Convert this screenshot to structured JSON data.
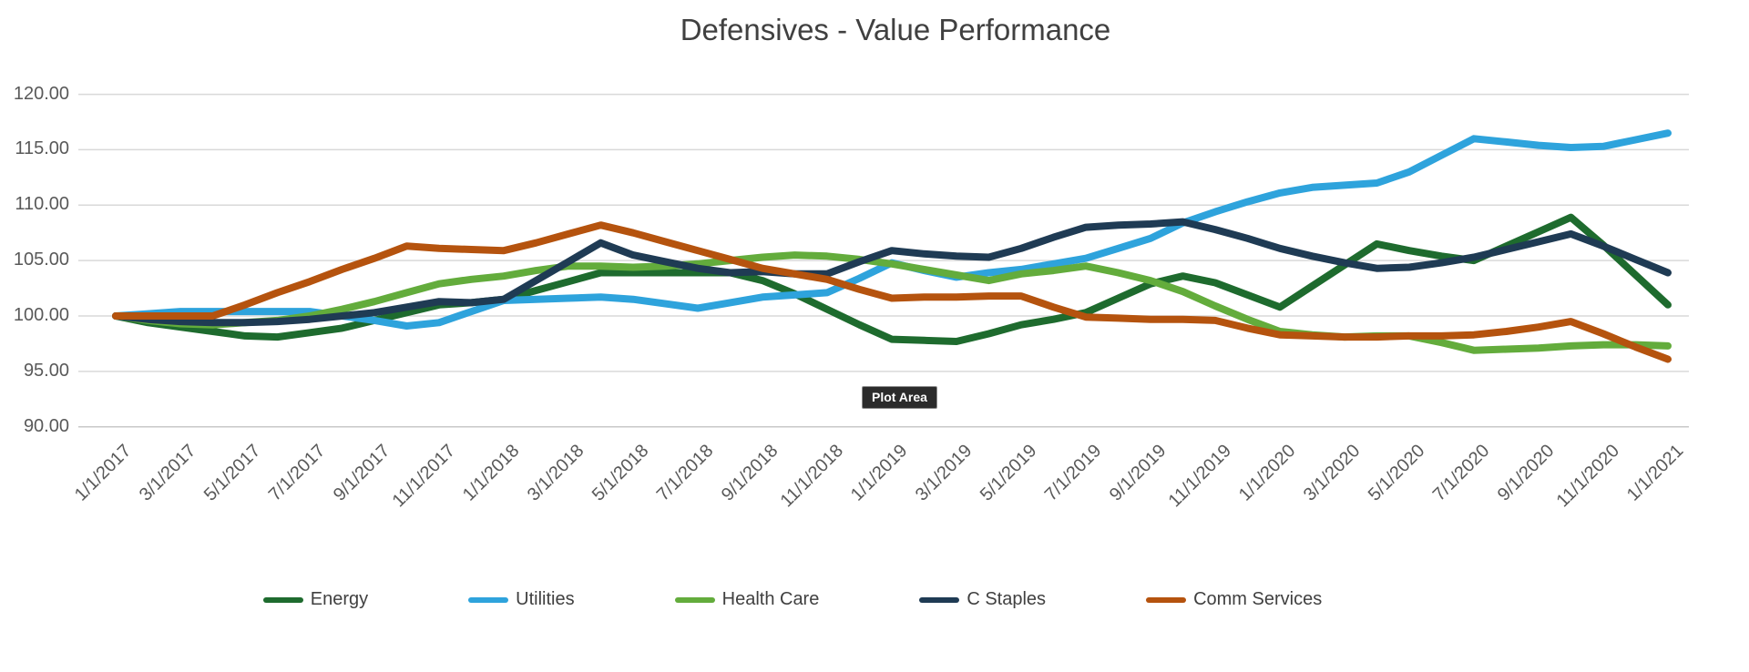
{
  "tooltip": {
    "label": "Plot Area"
  },
  "chart_data": {
    "type": "line",
    "title": "Defensives - Value Performance",
    "xlabel": "",
    "ylabel": "",
    "grid": true,
    "legend_position": "bottom",
    "x_axis": {
      "label_every": 2,
      "label_rotation_deg": -45,
      "categories": [
        "1/1/2017",
        "2/1/2017",
        "3/1/2017",
        "4/1/2017",
        "5/1/2017",
        "6/1/2017",
        "7/1/2017",
        "8/1/2017",
        "9/1/2017",
        "10/1/2017",
        "11/1/2017",
        "12/1/2017",
        "1/1/2018",
        "2/1/2018",
        "3/1/2018",
        "4/1/2018",
        "5/1/2018",
        "6/1/2018",
        "7/1/2018",
        "8/1/2018",
        "9/1/2018",
        "10/1/2018",
        "11/1/2018",
        "12/1/2018",
        "1/1/2019",
        "2/1/2019",
        "3/1/2019",
        "4/1/2019",
        "5/1/2019",
        "6/1/2019",
        "7/1/2019",
        "8/1/2019",
        "9/1/2019",
        "10/1/2019",
        "11/1/2019",
        "12/1/2019",
        "1/1/2020",
        "2/1/2020",
        "3/1/2020",
        "4/1/2020",
        "5/1/2020",
        "6/1/2020",
        "7/1/2020",
        "8/1/2020",
        "9/1/2020",
        "10/1/2020",
        "11/1/2020",
        "12/1/2020",
        "1/1/2021"
      ]
    },
    "y_axis": {
      "min": 90,
      "max": 120,
      "step": 5,
      "tick_labels": [
        "120.00",
        "115.00",
        "110.00",
        "105.00",
        "100.00",
        "95.00",
        "90.00"
      ],
      "tick_values": [
        120,
        115,
        110,
        105,
        100,
        95,
        90
      ]
    },
    "series": [
      {
        "name": "Energy",
        "color": "#1E6B2E",
        "values": [
          100.0,
          99.4,
          99.0,
          98.6,
          98.2,
          98.1,
          98.5,
          98.9,
          99.6,
          100.3,
          101.0,
          101.2,
          101.5,
          102.3,
          103.1,
          103.9,
          103.9,
          103.9,
          103.9,
          103.9,
          103.2,
          102.0,
          100.6,
          99.2,
          97.9,
          97.8,
          97.7,
          98.4,
          99.2,
          99.7,
          100.3,
          101.6,
          102.9,
          103.6,
          103.0,
          101.9,
          100.8,
          102.7,
          104.6,
          106.5,
          105.9,
          105.4,
          105.0,
          106.3,
          107.6,
          108.9,
          106.4,
          103.7,
          101.0
        ]
      },
      {
        "name": "Utilities",
        "color": "#2EA3DC",
        "values": [
          100.0,
          100.2,
          100.4,
          100.4,
          100.4,
          100.4,
          100.4,
          100.0,
          99.6,
          99.1,
          99.4,
          100.4,
          101.4,
          101.5,
          101.6,
          101.7,
          101.5,
          101.1,
          100.7,
          101.2,
          101.7,
          101.9,
          102.1,
          103.4,
          104.8,
          104.1,
          103.5,
          103.9,
          104.2,
          104.7,
          105.2,
          106.1,
          107.0,
          108.4,
          109.4,
          110.3,
          111.1,
          111.6,
          111.8,
          112.0,
          113.0,
          114.5,
          116.0,
          115.7,
          115.4,
          115.2,
          115.3,
          115.9,
          116.5
        ]
      },
      {
        "name": "Health Care",
        "color": "#63AC3C",
        "values": [
          100.0,
          99.6,
          99.3,
          99.2,
          99.4,
          99.6,
          100.0,
          100.6,
          101.3,
          102.1,
          102.9,
          103.3,
          103.6,
          104.1,
          104.5,
          104.5,
          104.4,
          104.5,
          104.7,
          105.0,
          105.3,
          105.5,
          105.4,
          105.1,
          104.7,
          104.2,
          103.7,
          103.2,
          103.8,
          104.1,
          104.5,
          103.9,
          103.2,
          102.2,
          100.9,
          99.7,
          98.6,
          98.3,
          98.1,
          98.2,
          98.2,
          97.6,
          96.9,
          97.0,
          97.1,
          97.3,
          97.4,
          97.4,
          97.3
        ]
      },
      {
        "name": "C Staples",
        "color": "#1F3B54",
        "values": [
          100.0,
          99.7,
          99.5,
          99.4,
          99.4,
          99.5,
          99.7,
          100.0,
          100.3,
          100.8,
          101.3,
          101.2,
          101.5,
          103.2,
          104.9,
          106.6,
          105.5,
          104.9,
          104.3,
          103.9,
          104.0,
          103.8,
          103.8,
          104.9,
          105.9,
          105.6,
          105.4,
          105.3,
          106.1,
          107.1,
          108.0,
          108.2,
          108.3,
          108.5,
          107.8,
          107.0,
          106.1,
          105.4,
          104.8,
          104.3,
          104.4,
          104.8,
          105.3,
          106.0,
          106.7,
          107.4,
          106.3,
          105.1,
          103.9
        ]
      },
      {
        "name": "Comm Services",
        "color": "#B5530E",
        "values": [
          100.0,
          100.0,
          100.0,
          100.0,
          101.0,
          102.1,
          103.1,
          104.2,
          105.2,
          106.3,
          106.1,
          106.0,
          105.9,
          106.6,
          107.4,
          108.2,
          107.5,
          106.7,
          105.9,
          105.1,
          104.3,
          103.8,
          103.3,
          102.4,
          101.6,
          101.7,
          101.7,
          101.8,
          101.8,
          100.8,
          99.9,
          99.8,
          99.7,
          99.7,
          99.6,
          98.9,
          98.3,
          98.2,
          98.1,
          98.1,
          98.2,
          98.2,
          98.3,
          98.6,
          99.0,
          99.5,
          98.4,
          97.2,
          96.1
        ]
      }
    ],
    "styles": {
      "grid_color": "#D9D9D9",
      "axis_line_color": "#C8C8C8",
      "title_color": "#404040",
      "tick_label_color": "#595959",
      "tooltip_bg": "#2B2B2B",
      "tooltip_text": "#FFFFFF",
      "background": "#FFFFFF"
    }
  }
}
